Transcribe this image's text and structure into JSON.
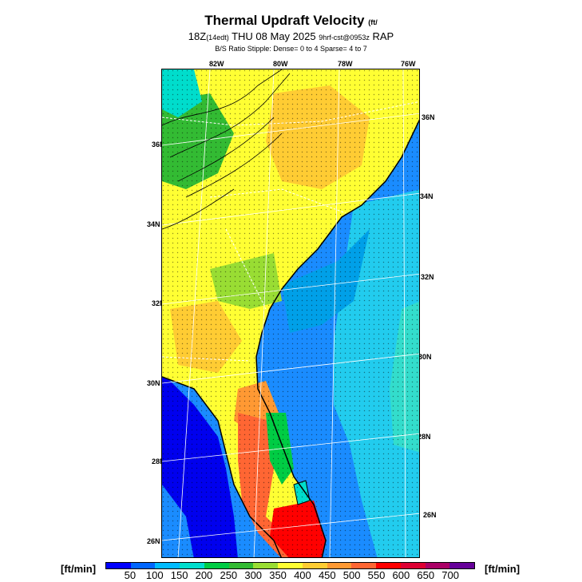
{
  "title": "Thermal Updraft Velocity",
  "title_unit": "(ft/",
  "subtitle_main": "18Z",
  "subtitle_edt": "(14edt)",
  "subtitle_date": " THU 08 May 2025 ",
  "subtitle_run": "9hrf-cst@0953z",
  "subtitle_model": " RAP",
  "stipple_note": "B/S Ratio Stipple:  Dense= 0 to 4  Sparse= 4 to 7",
  "lon_labels": [
    "82W",
    "80W",
    "78W",
    "76W"
  ],
  "lat_left_labels": [
    "36N",
    "34N",
    "32N",
    "30N",
    "28N",
    "26N"
  ],
  "lat_right_labels": [
    "36N",
    "34N",
    "32N",
    "30N",
    "28N",
    "26N"
  ],
  "scale_unit_left": "[ft/min]",
  "scale_unit_right": "[ft/min]",
  "scale_ticks": [
    "50",
    "100",
    "150",
    "200",
    "250",
    "300",
    "350",
    "400",
    "450",
    "500",
    "550",
    "600",
    "650",
    "700"
  ],
  "scale_colors": [
    "#0000ff",
    "#0066ff",
    "#00bbff",
    "#00ddcc",
    "#00cc44",
    "#33bb33",
    "#99dd33",
    "#ffff33",
    "#ffcc33",
    "#ff9933",
    "#ff6633",
    "#ff0000",
    "#dd0033",
    "#aa0066",
    "#660099"
  ]
}
